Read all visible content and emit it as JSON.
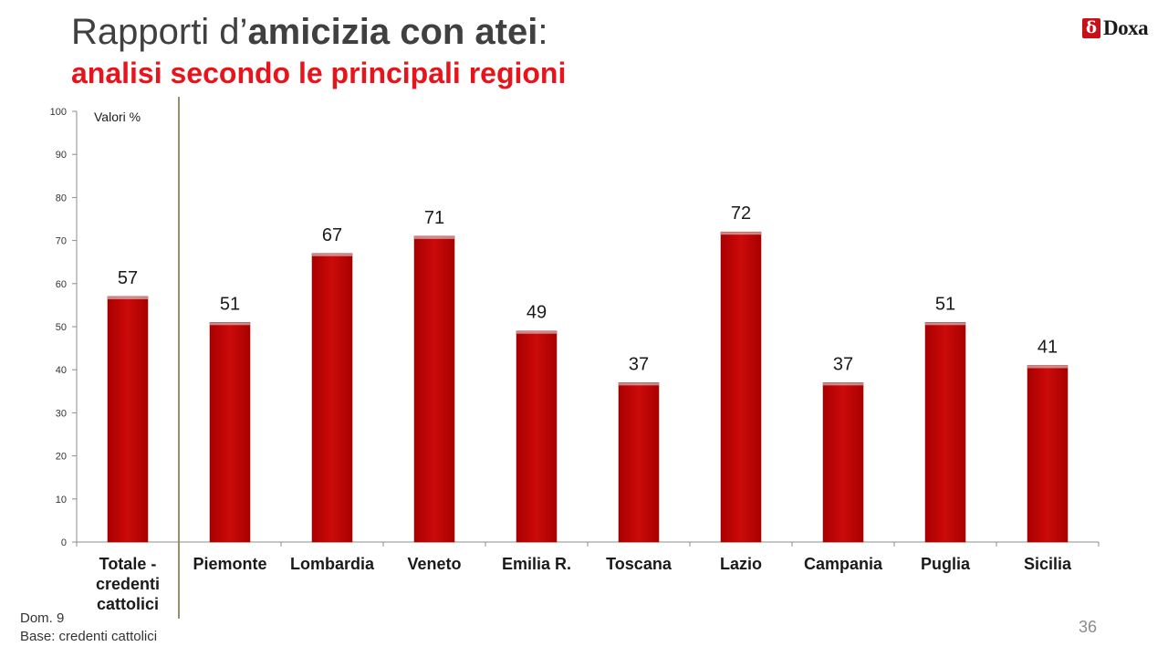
{
  "slide": {
    "title_prefix": "Rapporti d’",
    "title_bold": "amicizia con atei",
    "title_suffix": ":",
    "subtitle": "analisi secondo le principali regioni",
    "logo_text": "Doxa",
    "footer_line1": "Dom. 9",
    "footer_line2": "Base: credenti cattolici",
    "page_number": "36"
  },
  "colors": {
    "bar": "#cc0a0a",
    "subtitle": "#e8141c",
    "divider": "#9a9068"
  },
  "chart_data": {
    "type": "bar",
    "annotation": "Valori %",
    "categories": [
      "Totale - credenti cattolici",
      "Piemonte",
      "Lombardia",
      "Veneto",
      "Emilia R.",
      "Toscana",
      "Lazio",
      "Campania",
      "Puglia",
      "Sicilia"
    ],
    "values": [
      57,
      51,
      67,
      71,
      49,
      37,
      72,
      37,
      51,
      41
    ],
    "ylim": [
      0,
      100
    ],
    "yticks": [
      0,
      10,
      20,
      30,
      40,
      50,
      60,
      70,
      80,
      90,
      100
    ],
    "grid": false,
    "legend": "none",
    "separator_after_index": 0
  }
}
